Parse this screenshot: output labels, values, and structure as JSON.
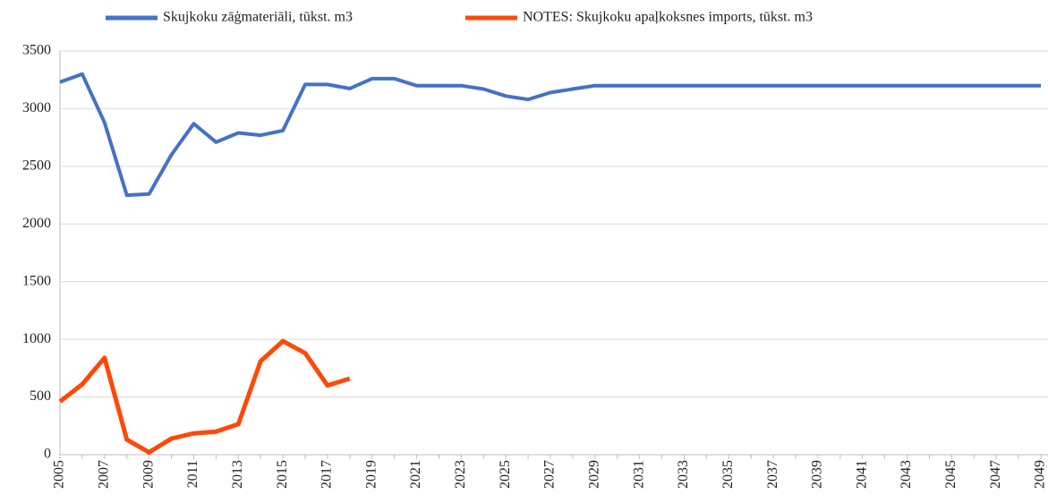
{
  "chart_data": {
    "type": "line",
    "categories": [
      "2005",
      null,
      "2007",
      null,
      "2009",
      null,
      "2011",
      null,
      "2013",
      null,
      "2015",
      null,
      "2017",
      null,
      "2019",
      null,
      "2021",
      null,
      "2023",
      null,
      "2025",
      null,
      "2027",
      null,
      "2029",
      null,
      "2031",
      null,
      "2033",
      null,
      "2035",
      null,
      "2037",
      null,
      "2039",
      null,
      "2041",
      null,
      "2043",
      null,
      "2045",
      null,
      "2047",
      null,
      "2049"
    ],
    "series": [
      {
        "name": "Skujkoku zāģmateriāli, tūkst. m3",
        "color": "#4472c4",
        "values": [
          3230,
          3300,
          2880,
          2250,
          2260,
          2600,
          2870,
          2710,
          2790,
          2770,
          2810,
          3210,
          3210,
          3175,
          3260,
          3260,
          3200,
          3200,
          3200,
          3170,
          3110,
          3080,
          3140,
          3170,
          3200,
          3200,
          3200,
          3200,
          3200,
          3200,
          3200,
          3200,
          3200,
          3200,
          3200,
          3200,
          3200,
          3200,
          3200,
          3200,
          3200,
          3200,
          3200,
          3200,
          3200
        ]
      },
      {
        "name": "NOTES: Skujkoku apaļkoksnes imports, tūkst. m3",
        "color": "#fc4a0a",
        "values": [
          460,
          610,
          840,
          130,
          20,
          140,
          185,
          200,
          265,
          810,
          985,
          880,
          600,
          660,
          null,
          null,
          null,
          null,
          null,
          null,
          null,
          null,
          null,
          null,
          null,
          null,
          null,
          null,
          null,
          null,
          null,
          null,
          null,
          null,
          null,
          null,
          null,
          null,
          null,
          null,
          null,
          null,
          null,
          null,
          null
        ]
      }
    ],
    "ylim": [
      0,
      3500
    ],
    "yticks": [
      0,
      500,
      1000,
      1500,
      2000,
      2500,
      3000,
      3500
    ],
    "grid": true,
    "legend": "top"
  }
}
